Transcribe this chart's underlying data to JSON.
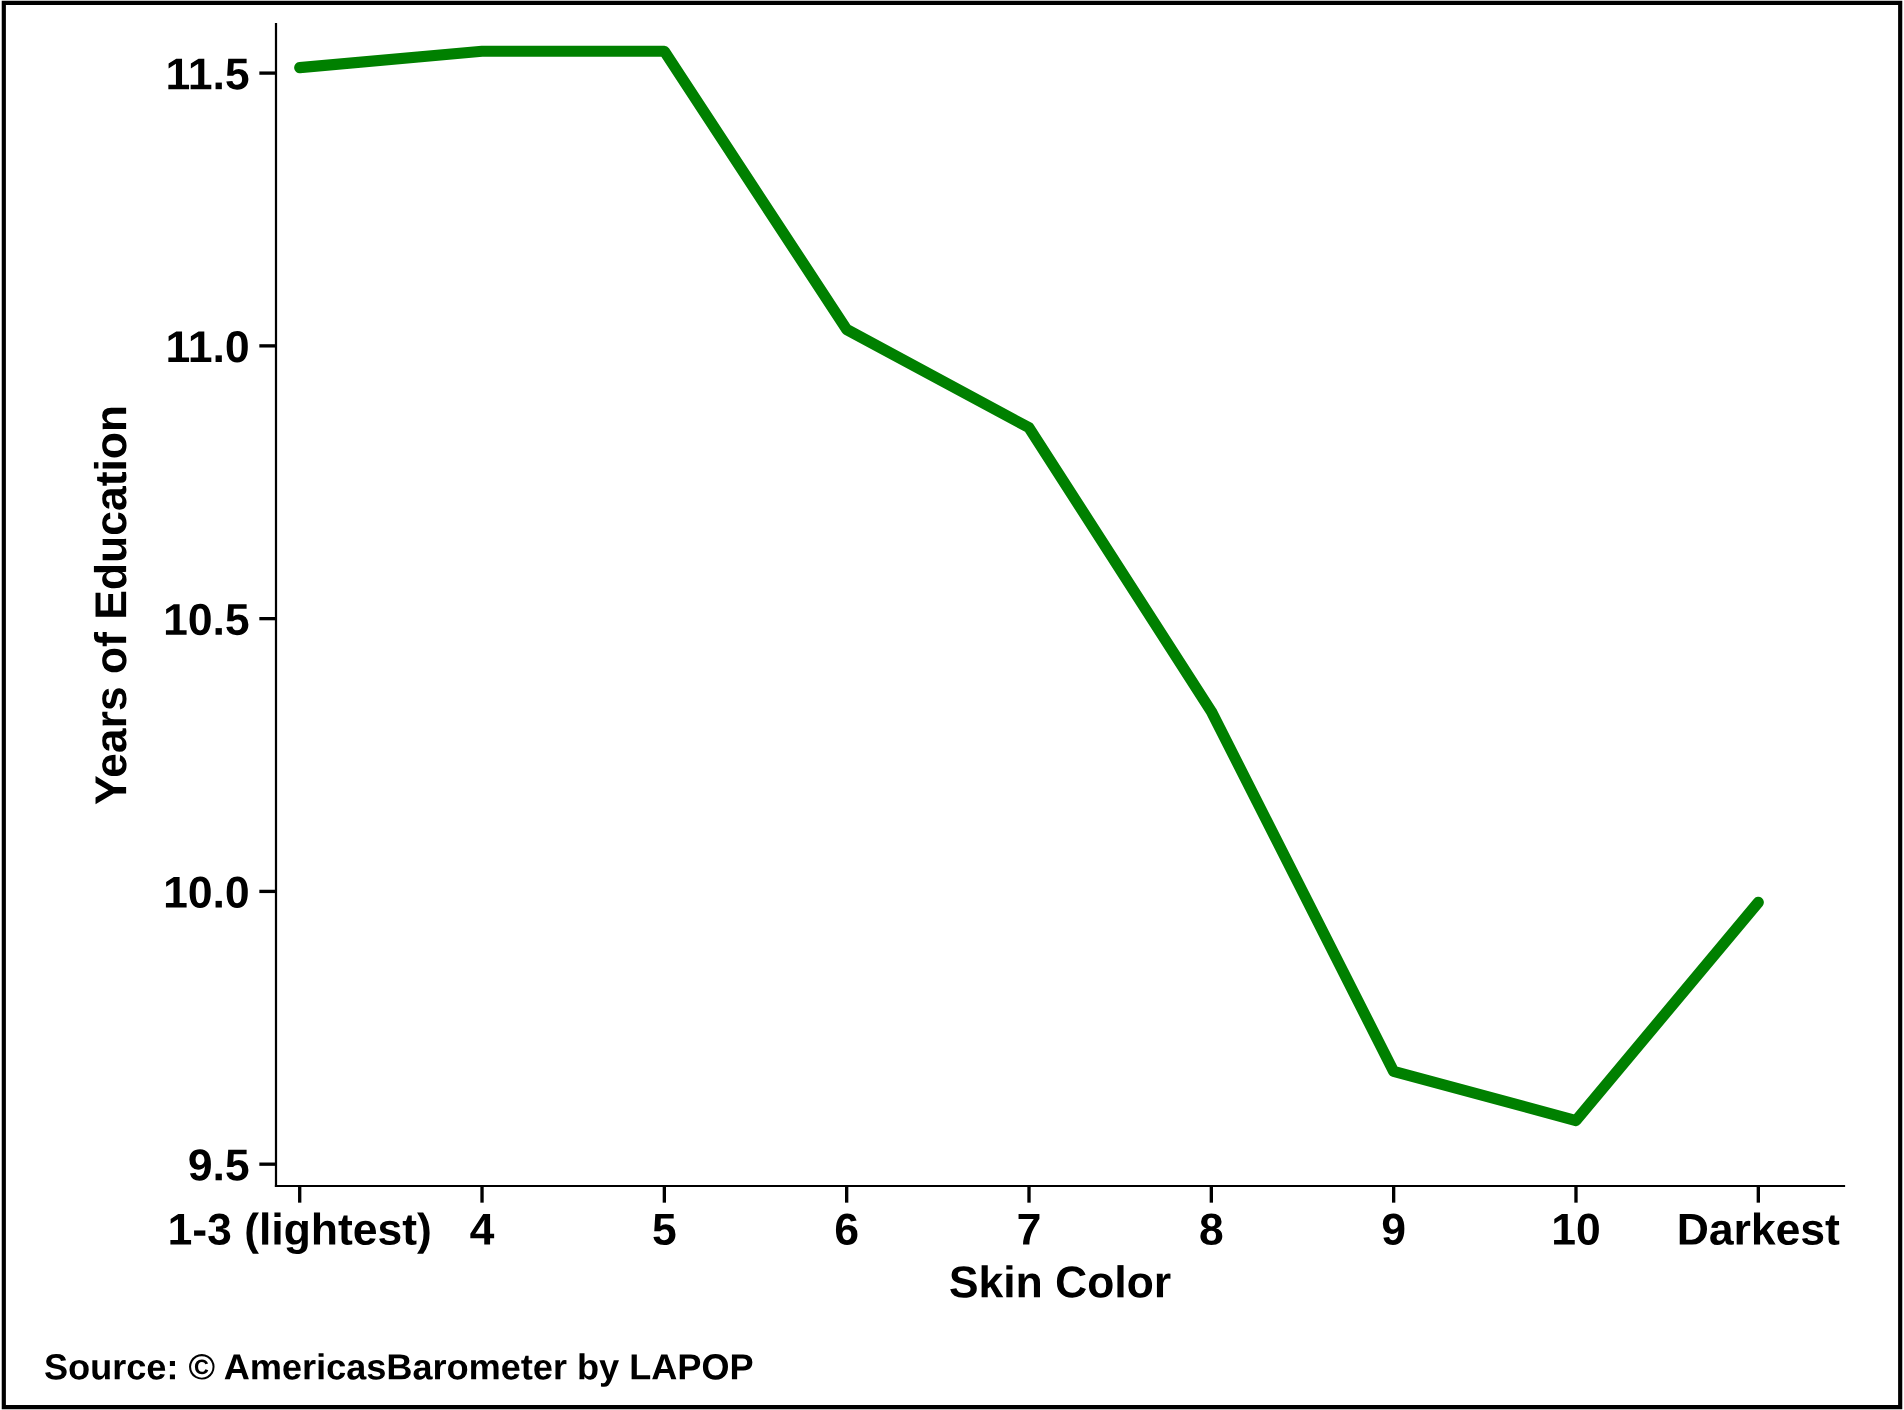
{
  "chart_data": {
    "type": "line",
    "xlabel": "Skin Color",
    "ylabel": "Years of Education",
    "categories": [
      "1-3 (lightest)",
      "4",
      "5",
      "6",
      "7",
      "8",
      "9",
      "10",
      "Darkest"
    ],
    "series": [
      {
        "color": "#008000",
        "values": [
          11.51,
          11.54,
          11.54,
          11.03,
          10.85,
          10.33,
          9.67,
          9.58,
          9.98
        ]
      }
    ],
    "ylim": [
      9.46,
      11.59
    ],
    "yticks": [
      {
        "value": 9.5,
        "label": "9.5"
      },
      {
        "value": 10,
        "label": "10.0"
      },
      {
        "value": 10.5,
        "label": "10.5"
      },
      {
        "value": 11,
        "label": "11.0"
      },
      {
        "value": 11.5,
        "label": "11.5"
      }
    ],
    "grid": false,
    "legend": false,
    "marker": "none",
    "line_style": "solid",
    "annotations": [
      "Source: © AmericasBarometer by LAPOP"
    ]
  }
}
